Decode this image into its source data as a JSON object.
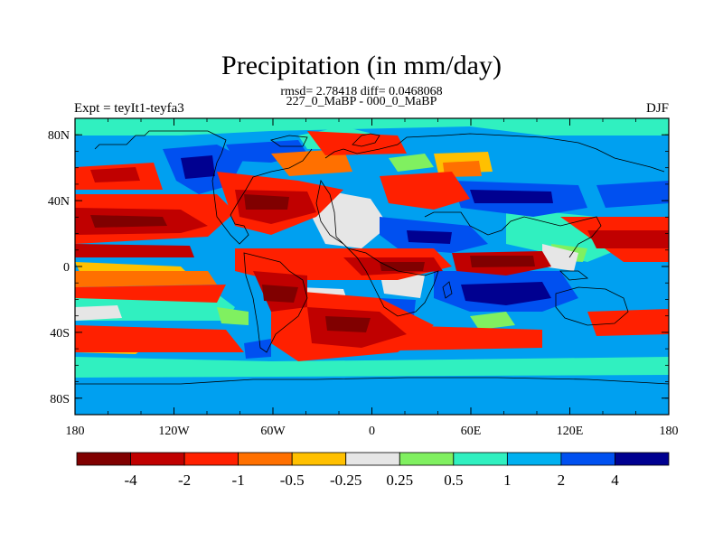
{
  "header": {
    "title": "Precipitation (in mm/day)",
    "stats": "rmsd= 2.78418 diff= 0.0468068",
    "subtitle": "227_0_MaBP - 000_0_MaBP",
    "left_label": "Expt = teyIt1-teyfa3",
    "right_label": "DJF"
  },
  "map": {
    "lat_range": [
      -90,
      90
    ],
    "lon_range": [
      -180,
      180
    ],
    "lat_ticks": [
      {
        "value": 80,
        "label": "80N"
      },
      {
        "value": 40,
        "label": "40N"
      },
      {
        "value": 0,
        "label": "0"
      },
      {
        "value": -40,
        "label": "40S"
      },
      {
        "value": -80,
        "label": "80S"
      }
    ],
    "lon_ticks": [
      {
        "value": -180,
        "label": "180"
      },
      {
        "value": -120,
        "label": "120W"
      },
      {
        "value": -60,
        "label": "60W"
      },
      {
        "value": 0,
        "label": "0"
      },
      {
        "value": 60,
        "label": "60E"
      },
      {
        "value": 120,
        "label": "120E"
      },
      {
        "value": 180,
        "label": "180"
      }
    ],
    "background_color": "#00a0f0"
  },
  "colorbar": {
    "colors": [
      "#800000",
      "#c00000",
      "#ff2000",
      "#ff7000",
      "#ffc000",
      "#e6e6e6",
      "#80f060",
      "#30f0c0",
      "#00b0f0",
      "#0050f0",
      "#000090"
    ],
    "labels": [
      "-4",
      "-2",
      "-1",
      "-0.5",
      "-0.25",
      "0.25",
      "0.5",
      "1",
      "2",
      "4"
    ]
  }
}
